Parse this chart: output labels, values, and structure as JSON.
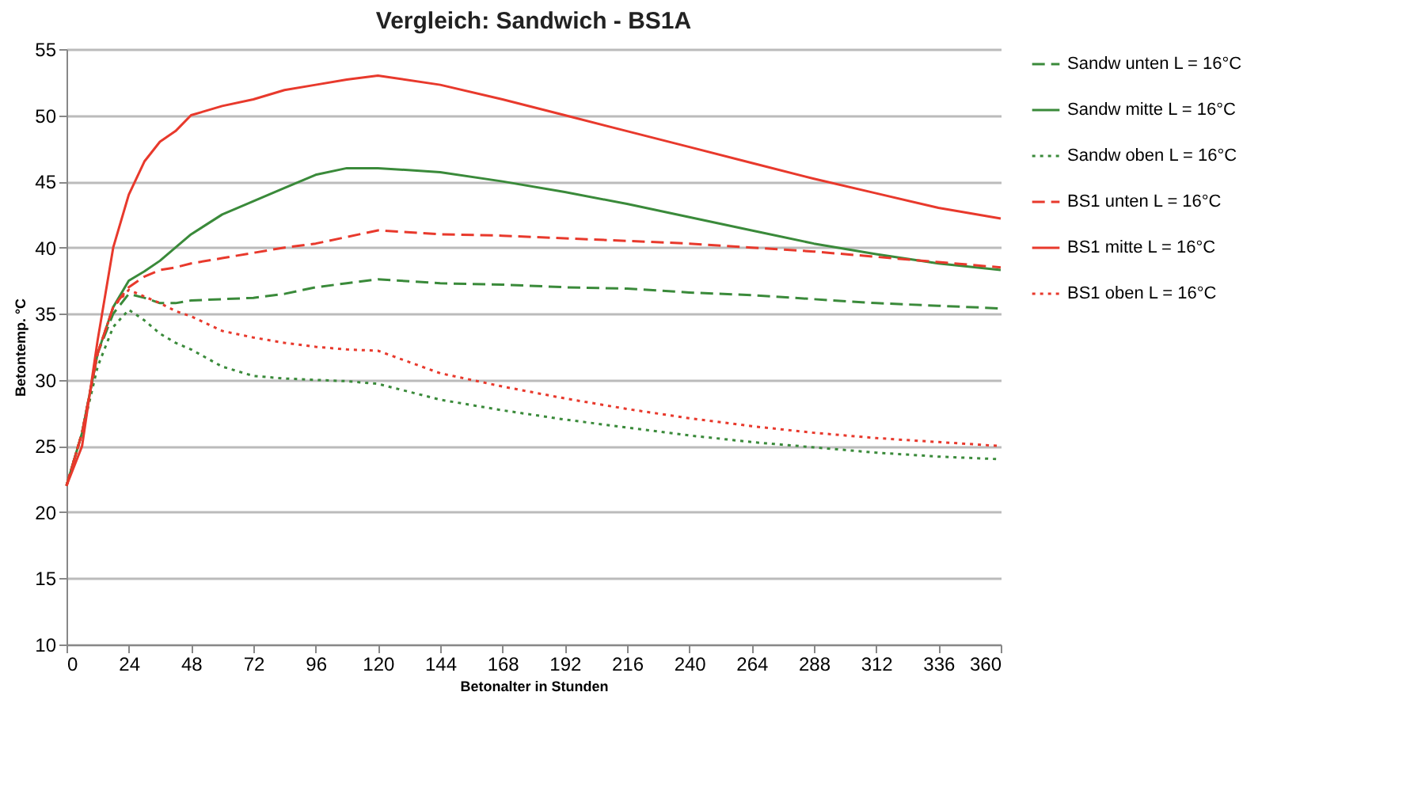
{
  "chart_data": {
    "type": "line",
    "title": "Vergleich: Sandwich - BS1A",
    "xlabel": "Betonalter in Stunden",
    "ylabel": "Betontemp. °C",
    "x": [
      0,
      6,
      12,
      18,
      24,
      30,
      36,
      42,
      48,
      60,
      72,
      84,
      96,
      108,
      120,
      144,
      168,
      192,
      216,
      240,
      264,
      288,
      312,
      336,
      360
    ],
    "series": [
      {
        "name": "Sandw unten L = 16°C",
        "color": "#3a8a3a",
        "line_style": "dashed",
        "values": [
          22,
          26,
          32,
          35,
          36.5,
          36.2,
          35.8,
          35.8,
          36,
          36.1,
          36.2,
          36.5,
          37,
          37.3,
          37.6,
          37.3,
          37.2,
          37,
          36.9,
          36.6,
          36.4,
          36.1,
          35.8,
          35.6,
          35.4
        ]
      },
      {
        "name": "Sandw mitte L = 16°C",
        "color": "#3a8a3a",
        "line_style": "solid",
        "values": [
          22,
          26,
          32,
          35.5,
          37.5,
          38.2,
          39,
          40,
          41,
          42.5,
          43.5,
          44.5,
          45.5,
          46,
          46,
          45.7,
          45,
          44.2,
          43.3,
          42.3,
          41.3,
          40.3,
          39.5,
          38.8,
          38.3
        ]
      },
      {
        "name": "Sandw oben L = 16°C",
        "color": "#3a8a3a",
        "line_style": "dotted",
        "values": [
          22,
          26,
          31,
          34,
          35.3,
          34.5,
          33.5,
          32.8,
          32.3,
          31,
          30.3,
          30.1,
          30,
          29.9,
          29.7,
          28.5,
          27.7,
          27,
          26.4,
          25.8,
          25.3,
          24.9,
          24.5,
          24.2,
          24
        ]
      },
      {
        "name": "BS1 unten L = 16°C",
        "color": "#e8392c",
        "line_style": "dashed",
        "values": [
          22,
          26,
          32,
          35.5,
          37,
          37.8,
          38.3,
          38.5,
          38.8,
          39.2,
          39.6,
          40,
          40.3,
          40.8,
          41.3,
          41,
          40.9,
          40.7,
          40.5,
          40.3,
          40,
          39.7,
          39.3,
          38.9,
          38.5
        ]
      },
      {
        "name": "BS1 mitte L = 16°C",
        "color": "#e8392c",
        "line_style": "solid",
        "values": [
          22,
          25,
          33,
          40,
          44,
          46.5,
          48,
          48.8,
          50,
          50.7,
          51.2,
          51.9,
          52.3,
          52.7,
          53,
          52.3,
          51.2,
          50,
          48.8,
          47.6,
          46.4,
          45.2,
          44.1,
          43,
          42.2
        ]
      },
      {
        "name": "BS1 oben L = 16°C",
        "color": "#e8392c",
        "line_style": "dotted",
        "values": [
          22,
          26,
          32,
          35.5,
          36.8,
          36.3,
          35.8,
          35.2,
          34.8,
          33.7,
          33.2,
          32.8,
          32.5,
          32.3,
          32.2,
          30.5,
          29.5,
          28.6,
          27.8,
          27.1,
          26.5,
          26,
          25.6,
          25.3,
          25
        ]
      }
    ],
    "xlim": [
      0,
      360
    ],
    "xticks": [
      0,
      24,
      48,
      72,
      96,
      120,
      144,
      168,
      192,
      216,
      240,
      264,
      288,
      312,
      336,
      360
    ],
    "ylim": [
      10,
      55
    ],
    "yticks": [
      10,
      15,
      20,
      25,
      30,
      35,
      40,
      45,
      50,
      55
    ],
    "grid": "y",
    "legend": "right",
    "marker": "none"
  }
}
